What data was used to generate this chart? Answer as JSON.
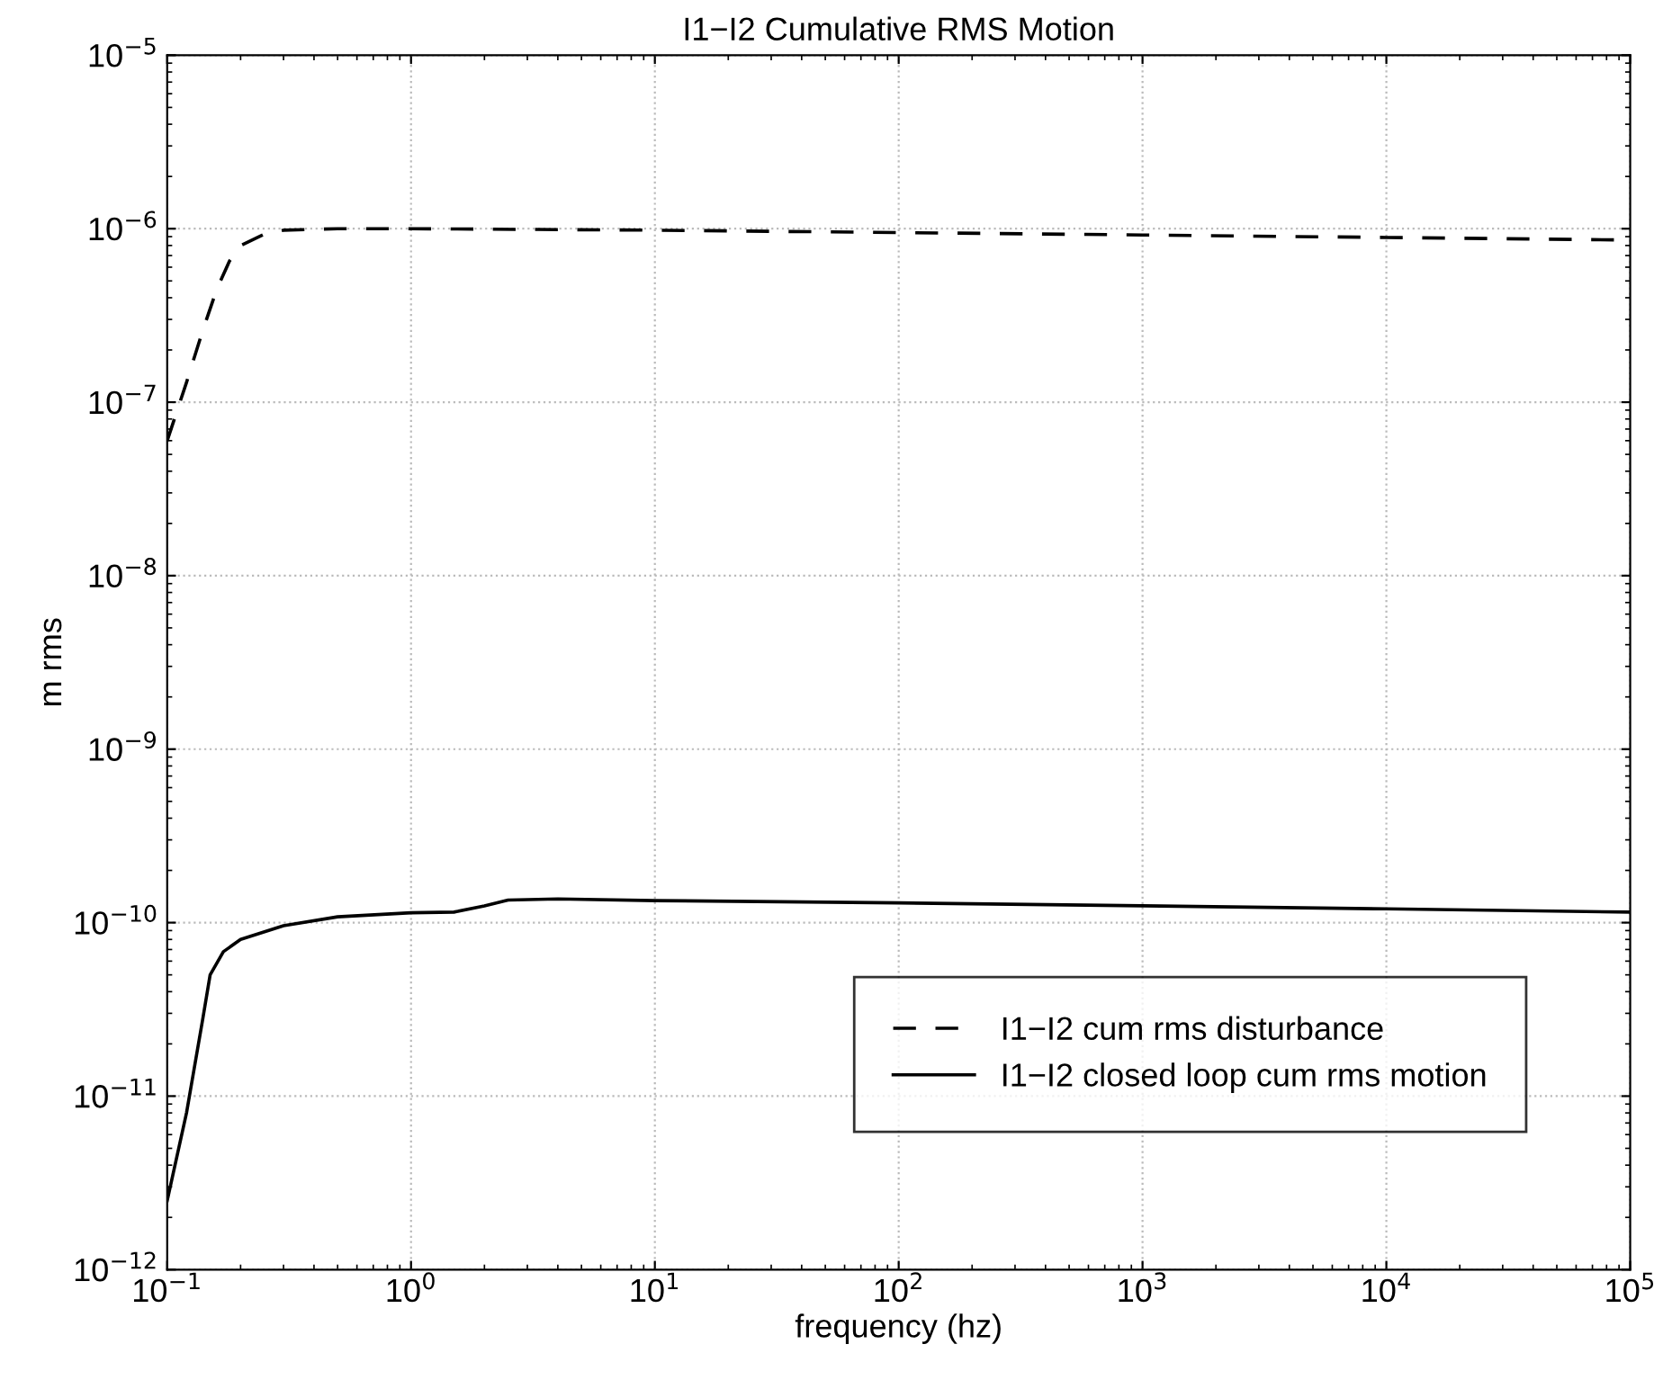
{
  "chart_data": {
    "type": "line",
    "title": "I1−I2 Cumulative RMS Motion",
    "xlabel": "frequency (hz)",
    "ylabel": "m rms",
    "log": "xy",
    "grid": true,
    "legend": "bottom right",
    "xlim": [
      0.1,
      100000
    ],
    "ylim": [
      1e-12,
      1e-05
    ],
    "xticks": [
      {
        "value": 0.1,
        "label": "10$^{−1}$"
      },
      {
        "value": 1,
        "label": "10$^{0}$"
      },
      {
        "value": 10,
        "label": "10$^{1}$"
      },
      {
        "value": 100,
        "label": "10$^{2}$"
      },
      {
        "value": 1000,
        "label": "10$^{3}$"
      },
      {
        "value": 10000,
        "label": "10$^{4}$"
      },
      {
        "value": 100000,
        "label": "10$^{5}$"
      }
    ],
    "yticks": [
      {
        "value": 1e-12,
        "label": "10$^{−12}$"
      },
      {
        "value": 1e-11,
        "label": "10$^{−11}$"
      },
      {
        "value": 1e-10,
        "label": "10$^{−10}$"
      },
      {
        "value": 1e-09,
        "label": "10$^{−9}$"
      },
      {
        "value": 1e-08,
        "label": "10$^{−8}$"
      },
      {
        "value": 1e-07,
        "label": "10$^{−7}$"
      },
      {
        "value": 1e-06,
        "label": "10$^{−6}$"
      },
      {
        "value": 1e-05,
        "label": "10$^{−5}$"
      }
    ],
    "series": [
      {
        "name": "I1−I2 cum rms disturbance",
        "color": "#000000",
        "line_style": "dashed",
        "x": [
          0.1,
          0.12,
          0.14,
          0.16,
          0.18,
          0.2,
          0.25,
          0.3,
          0.5,
          1,
          10,
          100,
          1000,
          10000,
          100000
        ],
        "values": [
          6e-08,
          1.3e-07,
          2.6e-07,
          4.5e-07,
          6.5e-07,
          8e-07,
          9.3e-07,
          9.8e-07,
          1e-06,
          1e-06,
          9.8e-07,
          9.5e-07,
          9.2e-07,
          8.9e-07,
          8.6e-07
        ]
      },
      {
        "name": "I1−I2 closed loop cum rms motion",
        "color": "#000000",
        "line_style": "solid",
        "x": [
          0.1,
          0.12,
          0.14,
          0.15,
          0.17,
          0.2,
          0.3,
          0.5,
          1,
          1.5,
          2,
          2.5,
          4,
          10,
          100,
          1000,
          10000,
          100000
        ],
        "values": [
          2.5e-12,
          8e-12,
          2.8e-11,
          5e-11,
          6.8e-11,
          8e-11,
          9.6e-11,
          1.08e-10,
          1.14e-10,
          1.15e-10,
          1.25e-10,
          1.35e-10,
          1.37e-10,
          1.34e-10,
          1.3e-10,
          1.25e-10,
          1.2e-10,
          1.15e-10
        ]
      }
    ]
  }
}
